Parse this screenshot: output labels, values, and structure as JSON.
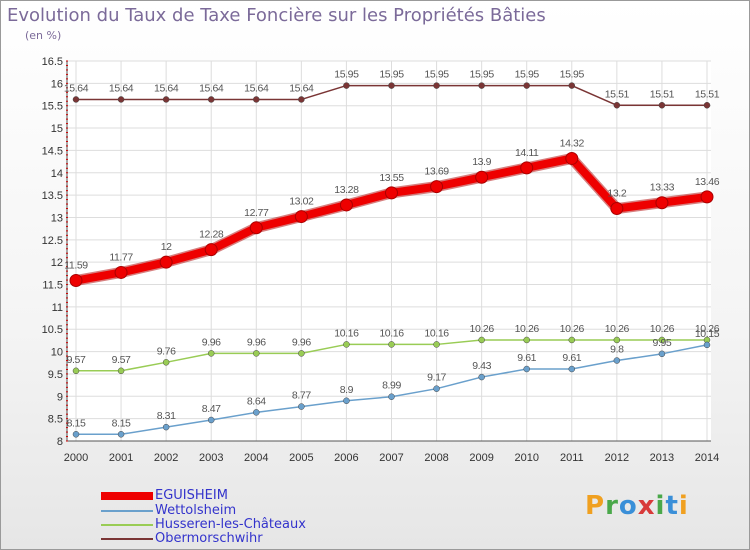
{
  "title": "Evolution du Taux de Taxe Foncière sur les Propriétés Bâties",
  "subtitle": "(en %)",
  "logo": {
    "letters": [
      "P",
      "r",
      "o",
      "x",
      "i",
      "t",
      "i"
    ],
    "colors": [
      "#f0a020",
      "#4aa84a",
      "#3a8fd8",
      "#d83a3a",
      "#4aa84a",
      "#3a8fd8",
      "#f0a020"
    ]
  },
  "chart_data": {
    "type": "line",
    "x": [
      "2000",
      "2001",
      "2002",
      "2003",
      "2004",
      "2005",
      "2006",
      "2007",
      "2008",
      "2009",
      "2010",
      "2011",
      "2012",
      "2013",
      "2014"
    ],
    "ylim": [
      8,
      16.5
    ],
    "yticks": [
      "8",
      "8.5",
      "9",
      "9.5",
      "10",
      "10.5",
      "11",
      "11.5",
      "12",
      "12.5",
      "13",
      "13.5",
      "14",
      "14.5",
      "15",
      "15.5",
      "16",
      "16.5"
    ],
    "grid": true,
    "legend": "bottom-left",
    "series": [
      {
        "name": "EGUISHEIM",
        "color": "#ee0000",
        "values": [
          11.59,
          11.77,
          12,
          12.28,
          12.77,
          13.02,
          13.28,
          13.55,
          13.69,
          13.9,
          14.11,
          14.32,
          13.2,
          13.33,
          13.46
        ],
        "labels": [
          "11.59",
          "11.77",
          "12",
          "12.28",
          "12.77",
          "13.02",
          "13.28",
          "13.55",
          "13.69",
          "13.9",
          "14.11",
          "14.32",
          "13.2",
          "13.33",
          "13.46"
        ]
      },
      {
        "name": "Wettolsheim",
        "color": "#6aa0cc",
        "values": [
          8.15,
          8.15,
          8.31,
          8.47,
          8.64,
          8.77,
          8.9,
          8.99,
          9.17,
          9.43,
          9.61,
          9.61,
          9.8,
          9.95,
          10.15
        ],
        "labels": [
          "8.15",
          "8.15",
          "8.31",
          "8.47",
          "8.64",
          "8.77",
          "8.9",
          "8.99",
          "9.17",
          "9.43",
          "9.61",
          "9.61",
          "9.8",
          "9.95",
          "10.15"
        ]
      },
      {
        "name": "Husseren-les-Châteaux",
        "color": "#99cc55",
        "values": [
          9.57,
          9.57,
          9.76,
          9.96,
          9.96,
          9.96,
          10.16,
          10.16,
          10.16,
          10.26,
          10.26,
          10.26,
          10.26,
          10.26,
          10.26
        ],
        "labels": [
          "9.57",
          "9.57",
          "9.76",
          "9.96",
          "9.96",
          "9.96",
          "10.16",
          "10.16",
          "10.16",
          "10.26",
          "10.26",
          "10.26",
          "10.26",
          "10.26",
          "10.26"
        ]
      },
      {
        "name": "Obermorschwihr",
        "color": "#7a3535",
        "values": [
          15.64,
          15.64,
          15.64,
          15.64,
          15.64,
          15.64,
          15.95,
          15.95,
          15.95,
          15.95,
          15.95,
          15.95,
          15.51,
          15.51,
          15.51
        ],
        "labels": [
          "15.64",
          "15.64",
          "15.64",
          "15.64",
          "15.64",
          "15.64",
          "15.95",
          "15.95",
          "15.95",
          "15.95",
          "15.95",
          "15.95",
          "15.51",
          "15.51",
          "15.51"
        ]
      }
    ]
  }
}
